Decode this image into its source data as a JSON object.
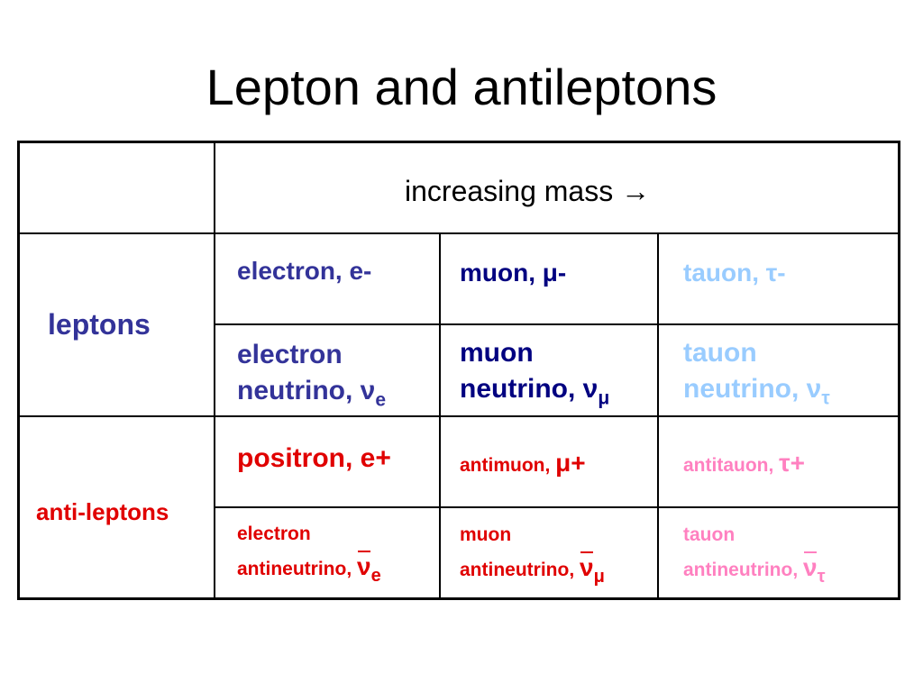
{
  "title": "Lepton and antileptons",
  "header": {
    "mass_label": "increasing mass →"
  },
  "rows": {
    "leptons_label": "leptons",
    "antileptons_label": "anti-leptons"
  },
  "colors": {
    "electron_family": "#333399",
    "muon_family": "#000080",
    "tau_family": "#99ccff",
    "anti_electron": "#e00000",
    "anti_muon": "#e00000",
    "anti_tau": "#ff80c0"
  },
  "leptons": {
    "electron": "electron, e-",
    "muon": "muon, μ-",
    "tau": "tauon, τ-",
    "electron_neutrino": {
      "line1": "electron",
      "line2": "neutrino, ν",
      "sub": "e"
    },
    "muon_neutrino": {
      "line1": "muon",
      "line2": "neutrino, ν",
      "sub": "μ"
    },
    "tau_neutrino": {
      "line1": "tauon",
      "line2": "neutrino, ν",
      "sub": "τ"
    }
  },
  "antileptons": {
    "positron": "positron, e+",
    "antimuon": {
      "text": "antimuon, ",
      "symbol": "μ+"
    },
    "antitau": {
      "text": "antitauon, ",
      "symbol": "τ+"
    },
    "electron_antineutrino": {
      "line1": "electron",
      "line2": "antineutrino,",
      "symbol": "ν",
      "sub": "e"
    },
    "muon_antineutrino": {
      "line1": "muon",
      "line2": "antineutrino,",
      "symbol": "ν",
      "sub": "μ"
    },
    "tau_antineutrino": {
      "line1": "tauon",
      "line2": "antineutrino,",
      "symbol": "ν",
      "sub": "τ"
    }
  }
}
